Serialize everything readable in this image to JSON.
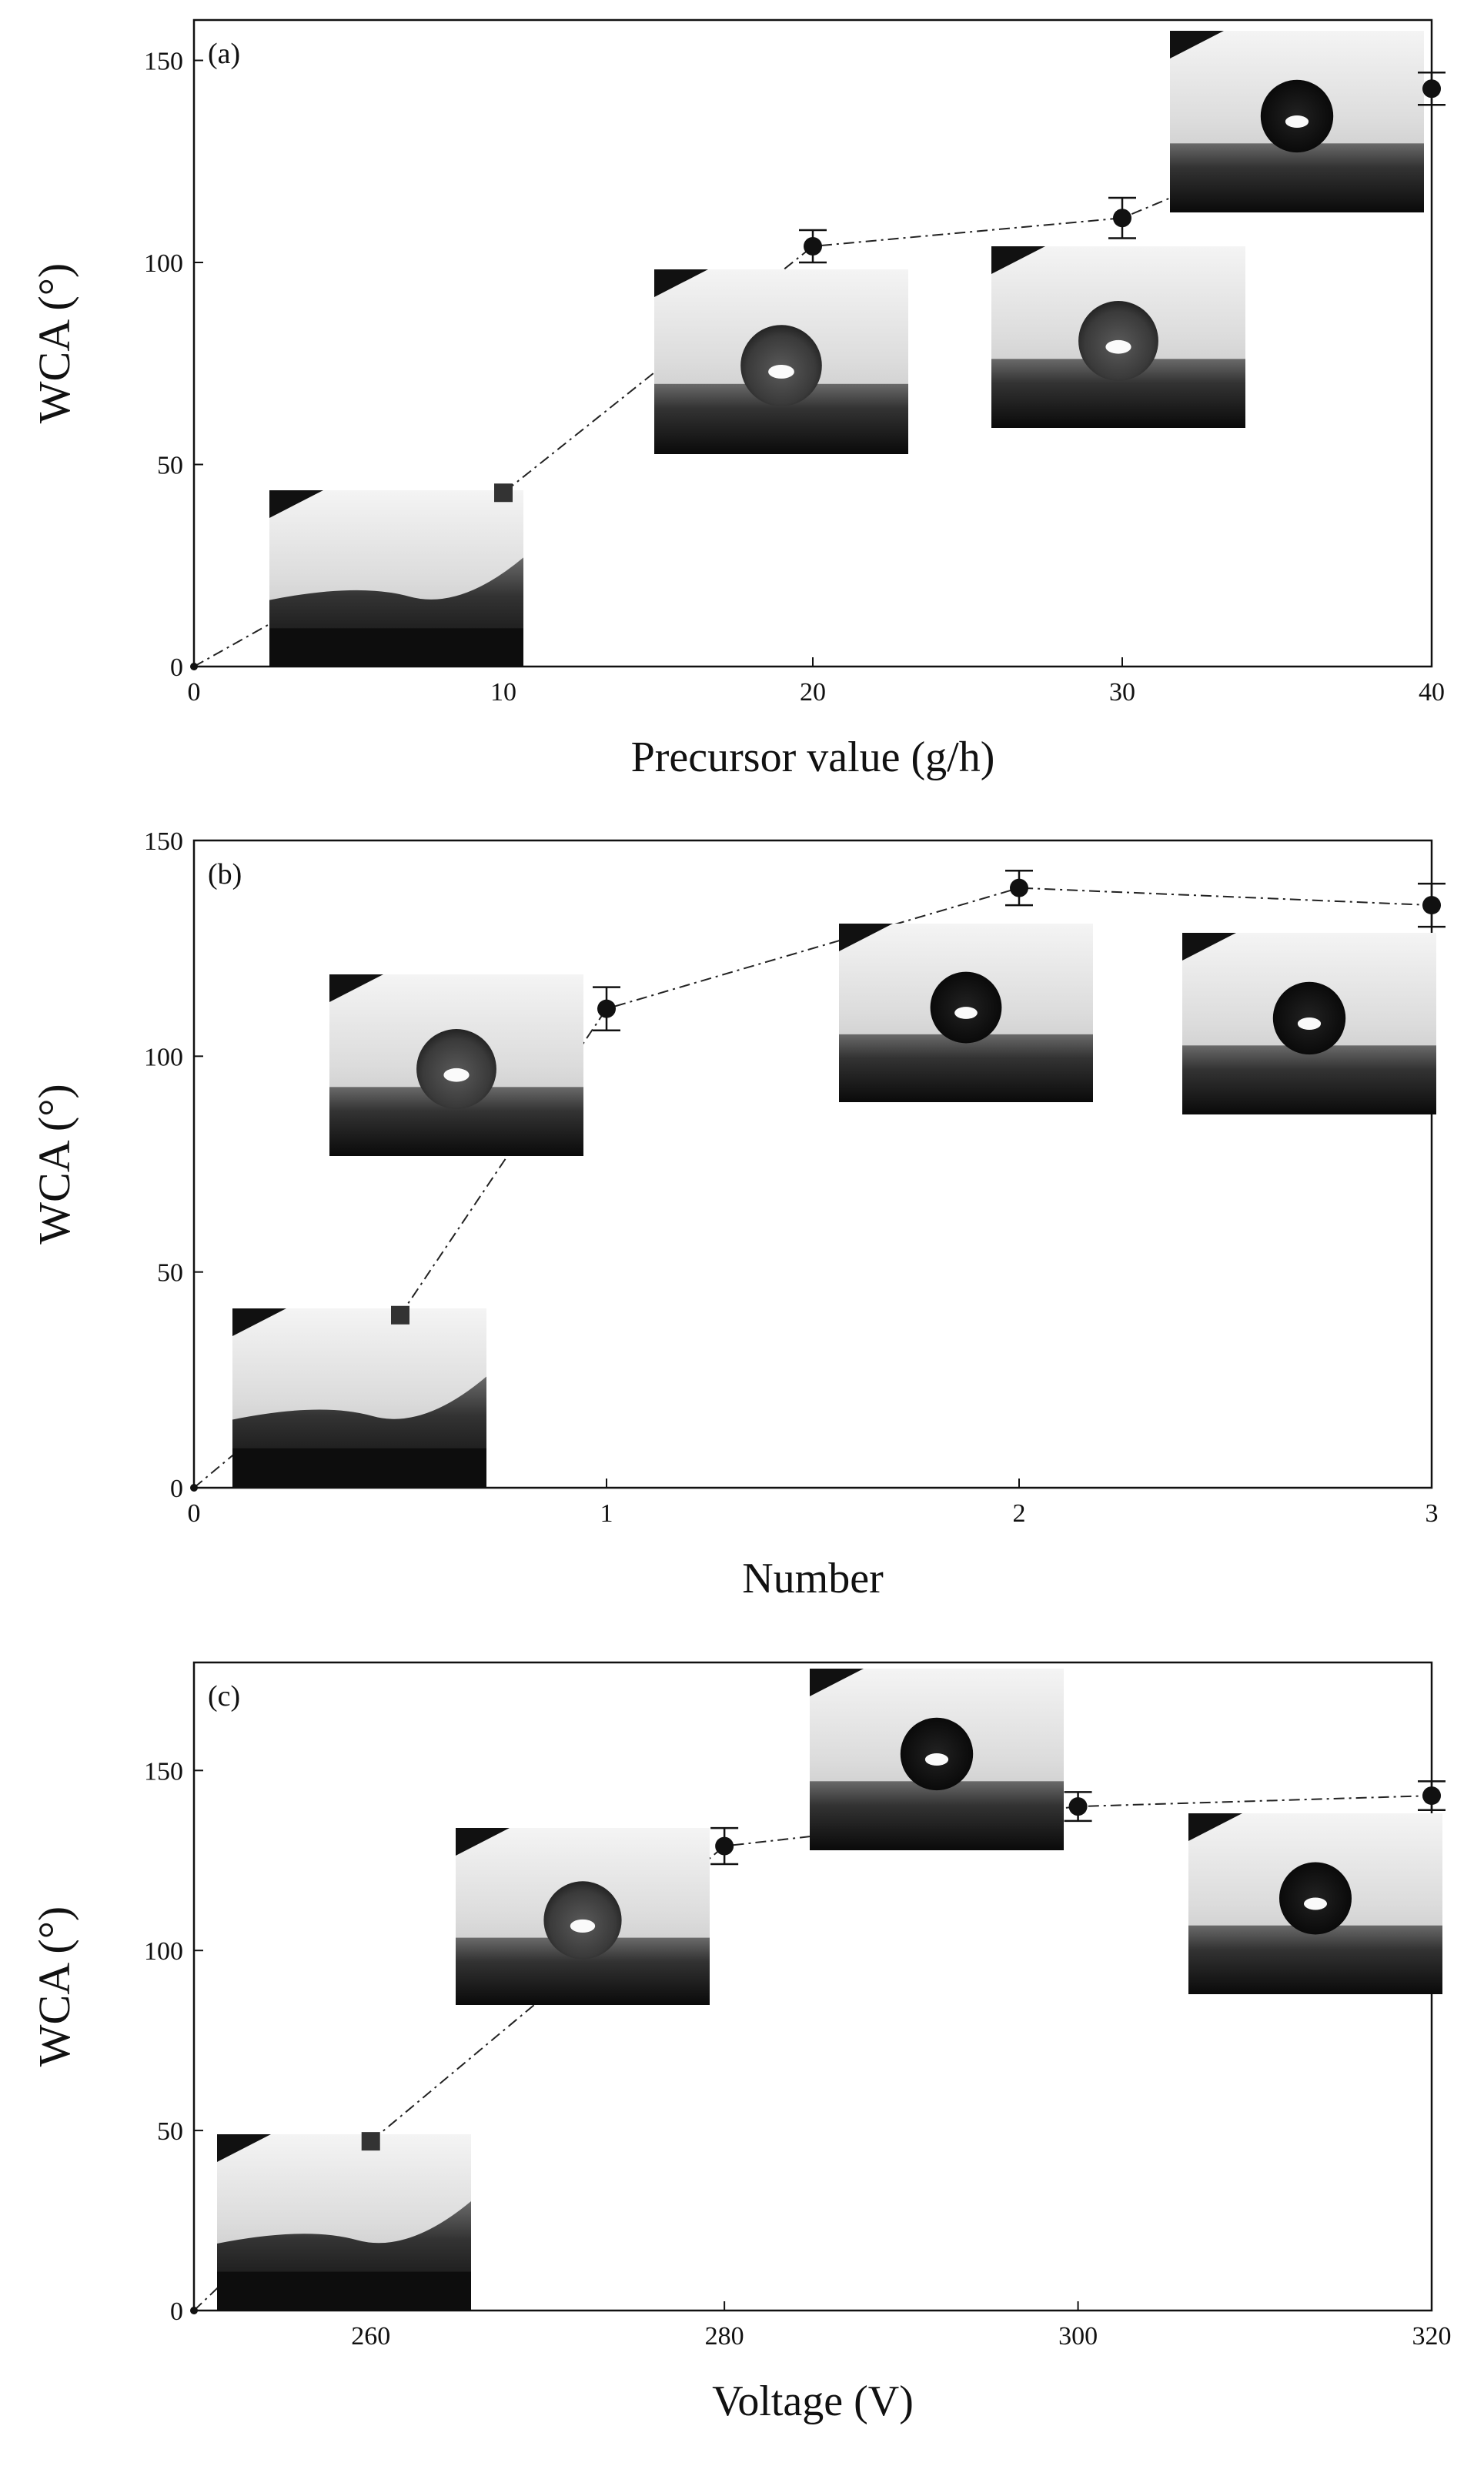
{
  "chart_data": [
    {
      "type": "scatter",
      "panel_label": "(a)",
      "xlabel": "Precursor value (g/h)",
      "ylabel": "WCA (°)",
      "xlim": [
        0,
        40
      ],
      "ylim": [
        0,
        160
      ],
      "xticks": [
        0,
        10,
        20,
        30,
        40
      ],
      "yticks": [
        0,
        50,
        100,
        150
      ],
      "series": [
        {
          "x": [
            0,
            10,
            20,
            30,
            40
          ],
          "y": [
            0,
            43,
            104,
            111,
            143
          ],
          "yerr": [
            0,
            0,
            4,
            5,
            4
          ]
        }
      ],
      "insets": [
        {
          "x": 8,
          "droplet": "spread"
        },
        {
          "x": 19,
          "droplet": "hydrophobic"
        },
        {
          "x": 29,
          "droplet": "hydrophobic"
        },
        {
          "x": 36,
          "droplet": "superhydrophobic"
        }
      ]
    },
    {
      "type": "scatter",
      "panel_label": "(b)",
      "xlabel": "Number",
      "ylabel": "WCA (°)",
      "xlim": [
        0,
        3
      ],
      "ylim": [
        0,
        150
      ],
      "xticks": [
        0,
        1,
        2,
        3
      ],
      "yticks": [
        0,
        50,
        100,
        150
      ],
      "series": [
        {
          "x": [
            0,
            0.5,
            1,
            2,
            3
          ],
          "y": [
            0,
            40,
            111,
            139,
            135
          ],
          "yerr": [
            0,
            0,
            5,
            4,
            5
          ]
        }
      ],
      "insets": [
        {
          "x": 0.25,
          "droplet": "spread"
        },
        {
          "x": 0.5,
          "droplet": "hydrophobic"
        },
        {
          "x": 1.6,
          "droplet": "superhydrophobic"
        },
        {
          "x": 2.5,
          "droplet": "superhydrophobic"
        }
      ]
    },
    {
      "type": "scatter",
      "panel_label": "(c)",
      "xlabel": "Voltage (V)",
      "ylabel": "WCA (°)",
      "xlim": [
        250,
        320
      ],
      "ylim": [
        0,
        180
      ],
      "xticks": [
        260,
        280,
        300,
        320
      ],
      "yticks": [
        0,
        50,
        100,
        150
      ],
      "series": [
        {
          "x": [
            250,
            260,
            280,
            300,
            320
          ],
          "y": [
            0,
            47,
            129,
            140,
            143
          ],
          "yerr": [
            0,
            0,
            5,
            4,
            4
          ]
        }
      ],
      "insets": [
        {
          "x": 257,
          "droplet": "spread"
        },
        {
          "x": 273,
          "droplet": "hydrophobic"
        },
        {
          "x": 291,
          "droplet": "superhydrophobic"
        },
        {
          "x": 313,
          "droplet": "superhydrophobic"
        }
      ]
    }
  ]
}
